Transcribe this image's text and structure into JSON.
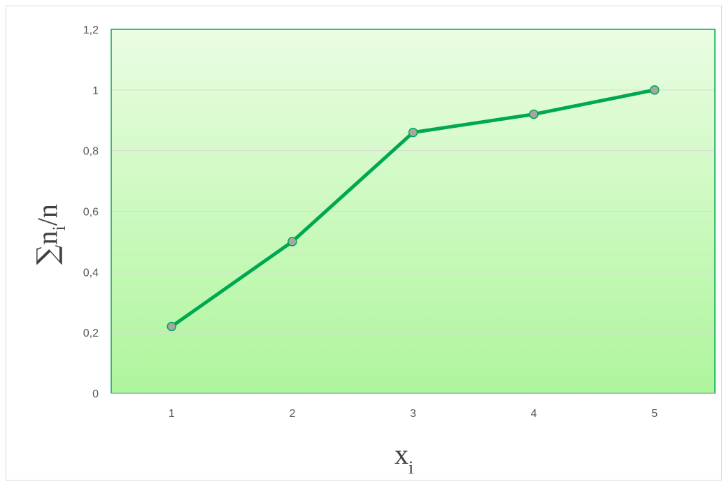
{
  "chart_data": {
    "type": "line",
    "categories": [
      "1",
      "2",
      "3",
      "4",
      "5"
    ],
    "series": [
      {
        "values": [
          0.22,
          0.5,
          0.86,
          0.92,
          1.0
        ]
      }
    ],
    "xlabel": {
      "base": "x",
      "sub": "i"
    },
    "ylabel": {
      "sum": "∑",
      "base": "n",
      "sub": "i",
      "tail": "/n"
    },
    "ylim": [
      0,
      1.2
    ],
    "yticks": [
      0,
      0.2,
      0.4,
      0.6,
      0.8,
      1,
      1.2
    ],
    "ytick_labels": [
      "0",
      "0,2",
      "0,4",
      "0,6",
      "0,8",
      "1",
      "1,2"
    ],
    "grid": true,
    "colors": {
      "line": "#00a84f",
      "marker_fill": "#a6a6a6",
      "marker_stroke": "#00a84f",
      "plot_top": "#eafde2",
      "plot_bottom": "#aef59c",
      "plot_border": "#00a84f",
      "grid": "#d9d9d9"
    }
  }
}
